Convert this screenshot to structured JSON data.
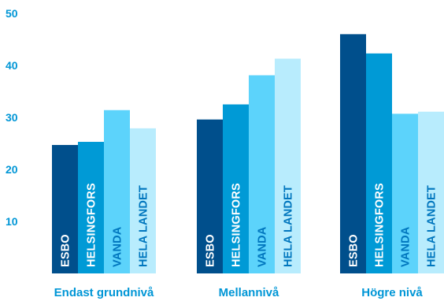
{
  "chart_data": {
    "type": "bar",
    "categories": [
      "Endast grundnivå",
      "Mellannivå",
      "Högre nivå"
    ],
    "series": [
      {
        "name": "ESBO",
        "values": [
          24.7,
          29.6,
          46.0
        ],
        "color": "#004F8C"
      },
      {
        "name": "HELSINGFORS",
        "values": [
          25.3,
          32.5,
          42.3
        ],
        "color": "#009AD6"
      },
      {
        "name": "VANDA",
        "values": [
          31.4,
          38.1,
          30.7
        ],
        "color": "#5CD3FB"
      },
      {
        "name": "HELA LANDET",
        "values": [
          27.9,
          41.3,
          31.1
        ],
        "color": "#B8ECFD"
      }
    ],
    "yticks": [
      10,
      20,
      30,
      40,
      50
    ],
    "ylim": [
      0,
      52
    ],
    "grid": false,
    "legend": "none",
    "label_colors": {
      "dark_bars": "#FFFFFF",
      "light_bars": "#0076BE"
    },
    "axis_text_color": "#0096D6",
    "title": "",
    "xlabel": "",
    "ylabel": ""
  }
}
